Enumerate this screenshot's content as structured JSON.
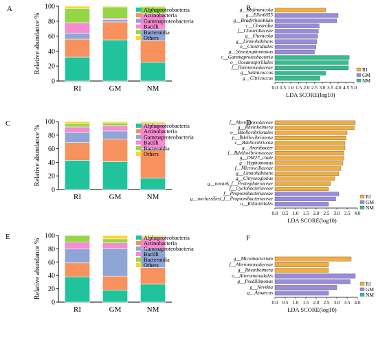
{
  "figure": {
    "colors": {
      "Alphaproteobacteria": "#20c39b",
      "Actinobacteria": "#f7925e",
      "Gammaproteobacteria": "#8fa5d6",
      "Bacilli": "#f58bd0",
      "Bacteroidia": "#95d646",
      "Others": "#fcd52c",
      "RI": "#f5ad3c",
      "GM": "#9a8be0",
      "NM": "#2fbf90"
    }
  },
  "chart_data": [
    {
      "type": "bar",
      "panel": "A",
      "stacked": true,
      "ylabel": "Relative abundance %",
      "ylim": [
        0,
        100
      ],
      "yticks": [
        0,
        20,
        40,
        60,
        80,
        100
      ],
      "categories": [
        "RI",
        "GM",
        "NM"
      ],
      "legend": "right",
      "series": [
        {
          "name": "Alphaproteobacteria",
          "values": [
            32,
            55,
            25
          ]
        },
        {
          "name": "Actinobacteria",
          "values": [
            24,
            24,
            29
          ]
        },
        {
          "name": "Gammaproteobacteria",
          "values": [
            8,
            3,
            15
          ]
        },
        {
          "name": "Bacilli",
          "values": [
            14,
            2,
            21
          ]
        },
        {
          "name": "Bacteroidia",
          "values": [
            19,
            15,
            9
          ]
        },
        {
          "name": "Others",
          "values": [
            3,
            1,
            1
          ]
        }
      ]
    },
    {
      "type": "bar",
      "panel": "B",
      "orientation": "horizontal",
      "xlabel": "LDA SCORE(log10)",
      "xlim": [
        0,
        5
      ],
      "xticks": [
        "0.0",
        "0.5",
        "1.0",
        "1.5",
        "2.0",
        "2.5",
        "3.0",
        "3.5",
        "4.0",
        "4.5",
        "5.0"
      ],
      "legend": "right",
      "groups": [
        "RI",
        "GM",
        "NM"
      ],
      "categories": [
        "g__Sediminicola",
        "g__Ellin6055",
        "g__Bradyrhizobium",
        "c__Clostridia",
        "f__Clostridiaceae",
        "g__Fluviicola",
        "g__Limnohabitans",
        "o__Clostridiales",
        "g__Stenotrophomonas",
        "c__Gammaproteobacteria",
        "o__Oceanospirillales",
        "f__Halomonadaceae",
        "g__Salinicoccus",
        "g__Citricoccus"
      ],
      "group_of": [
        "RI",
        "GM",
        "GM",
        "GM",
        "GM",
        "GM",
        "GM",
        "GM",
        "GM",
        "NM",
        "NM",
        "NM",
        "NM",
        "NM"
      ],
      "values": [
        3.2,
        4.0,
        3.9,
        2.8,
        2.75,
        2.7,
        2.65,
        2.6,
        2.5,
        4.7,
        4.65,
        4.65,
        3.2,
        2.85
      ]
    },
    {
      "type": "bar",
      "panel": "C",
      "stacked": true,
      "ylabel": "Relative abundance %",
      "ylim": [
        0,
        100
      ],
      "yticks": [
        0,
        20,
        40,
        60,
        80,
        100
      ],
      "categories": [
        "RI",
        "GM",
        "NM"
      ],
      "legend": "right",
      "series": [
        {
          "name": "Alphaproteobacteria",
          "values": [
            43,
            41,
            17
          ]
        },
        {
          "name": "Actinobacteria",
          "values": [
            26,
            33,
            41
          ]
        },
        {
          "name": "Gammaproteobacteria",
          "values": [
            15,
            12,
            2
          ]
        },
        {
          "name": "Bacilli",
          "values": [
            8,
            8,
            36
          ]
        },
        {
          "name": "Bacteroidia",
          "values": [
            5,
            4,
            2
          ]
        },
        {
          "name": "Others",
          "values": [
            3,
            2,
            2
          ]
        }
      ]
    },
    {
      "type": "bar",
      "panel": "D",
      "orientation": "horizontal",
      "xlabel": "LDA SCORE(log10)",
      "xlim": [
        0,
        4
      ],
      "xticks": [
        "0.0",
        "0.5",
        "1.0",
        "1.5",
        "2.0",
        "2.5",
        "3.0",
        "3.5",
        "4.0"
      ],
      "legend": "right",
      "groups": [
        "RI",
        "GM",
        "NM"
      ],
      "categories": [
        "f__Alteromonadaceae",
        "g__Rheinheimera",
        "o__Bdellovibrionales",
        "p__Bdellovibrionota",
        "c__Bdellovibrionia",
        "g__Arenibacter",
        "f__Bdellovibrionaceae",
        "g__OM27_clade",
        "g__Hyphomonas",
        "f__Microscillaceae",
        "g__Limnohabitans",
        "g__Chryseoglobus",
        "g__norank_f__Pedosphaeraceae",
        "f__Cyclobacteriaceae",
        "f__Propionibacteriaceae",
        "g__unclassified_f__Propionibacteriaceae",
        "o__Kiloniellales"
      ],
      "group_of": [
        "RI",
        "RI",
        "RI",
        "RI",
        "RI",
        "RI",
        "RI",
        "RI",
        "RI",
        "RI",
        "RI",
        "RI",
        "RI",
        "RI",
        "GM",
        "GM",
        "GM"
      ],
      "values": [
        3.9,
        3.85,
        3.5,
        3.45,
        3.4,
        3.4,
        3.35,
        3.35,
        3.3,
        3.2,
        3.1,
        2.9,
        2.7,
        2.6,
        3.1,
        2.95,
        2.6
      ]
    },
    {
      "type": "bar",
      "panel": "E",
      "stacked": true,
      "ylabel": "Relative abundance %",
      "ylim": [
        0,
        100
      ],
      "yticks": [
        0,
        20,
        40,
        60,
        80,
        100
      ],
      "categories": [
        "RI",
        "GM",
        "NM"
      ],
      "legend": "right",
      "series": [
        {
          "name": "Alphaproteobacteria",
          "values": [
            38,
            18,
            27
          ]
        },
        {
          "name": "Actinobacteria",
          "values": [
            21,
            21,
            25
          ]
        },
        {
          "name": "Gammaproteobacteria",
          "values": [
            21,
            42,
            28
          ]
        },
        {
          "name": "Bacilli",
          "values": [
            10,
            8,
            16
          ]
        },
        {
          "name": "Bacteroidia",
          "values": [
            10,
            6,
            2
          ]
        },
        {
          "name": "Others",
          "values": [
            0,
            5,
            2
          ]
        }
      ]
    },
    {
      "type": "bar",
      "panel": "F",
      "orientation": "horizontal",
      "xlabel": "LDA SCORE(log10)",
      "xlim": [
        0,
        4
      ],
      "xticks": [
        "0.0",
        "0.5",
        "1.0",
        "1.5",
        "2.0",
        "2.5",
        "3.0",
        "3.5",
        "4.0"
      ],
      "legend": "right",
      "groups": [
        "RI",
        "GM",
        "NM"
      ],
      "categories": [
        "g__Microbacterium",
        "f__Alteromonadaceae",
        "g__Rheinheimera",
        "o__Alteromonadales",
        "g__Psedillimonas",
        "g__Nevskia",
        "g__Azoarcus"
      ],
      "group_of": [
        "RI",
        "RI",
        "RI",
        "GM",
        "GM",
        "GM",
        "GM"
      ],
      "values": [
        3.7,
        2.6,
        2.6,
        3.9,
        3.65,
        3.0,
        2.6
      ]
    }
  ]
}
